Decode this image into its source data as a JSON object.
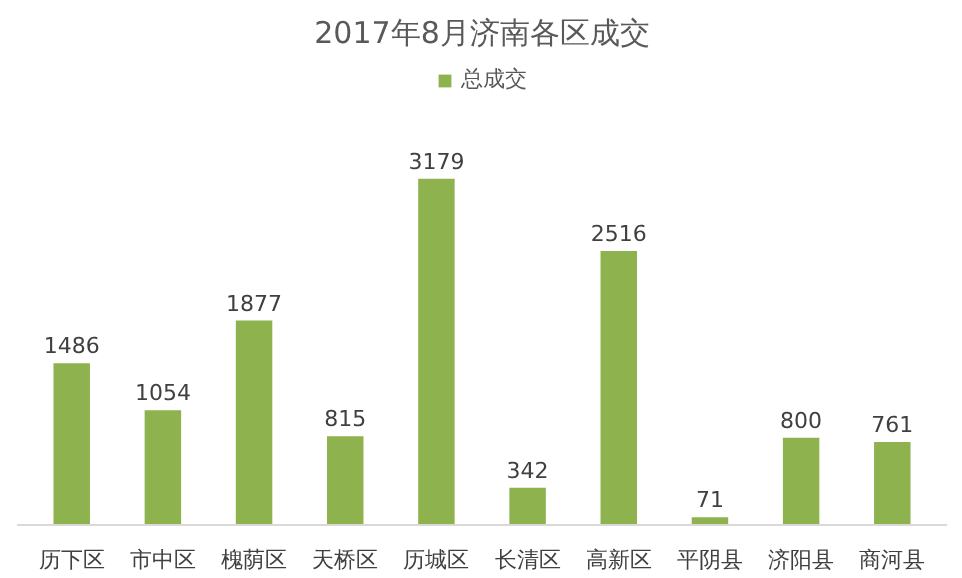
{
  "chart_data": {
    "type": "bar",
    "title": "2017年8月济南各区成交",
    "categories": [
      "历下区",
      "市中区",
      "槐荫区",
      "天桥区",
      "历城区",
      "长清区",
      "高新区",
      "平阴县",
      "济阳县",
      "商河县"
    ],
    "series": [
      {
        "name": "总成交",
        "color": "#8db24e",
        "values": [
          1486,
          1054,
          1877,
          815,
          3179,
          342,
          2516,
          71,
          800,
          761
        ]
      }
    ],
    "data_labels": true,
    "legend": "top",
    "grid": false
  }
}
